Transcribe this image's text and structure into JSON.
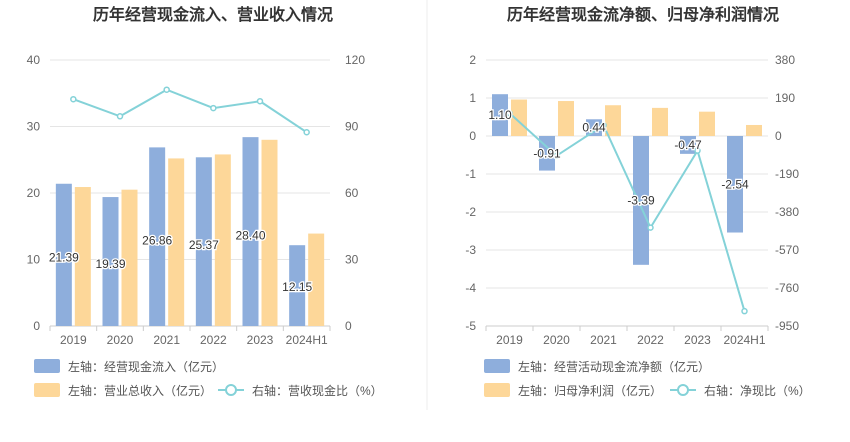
{
  "colors": {
    "bar_primary": "#8eaedc",
    "bar_secondary": "#fdd799",
    "line": "#84d2d8",
    "grid": "#e5e5e5",
    "axis_text": "#666666",
    "title": "#333333",
    "divider": "#eeeeee"
  },
  "chart_data": [
    {
      "type": "bar+line",
      "title": "历年经营现金流入、营业收入情况",
      "categories": [
        "2019",
        "2020",
        "2021",
        "2022",
        "2023",
        "2024H1"
      ],
      "left_axis": {
        "ylim": [
          0,
          40
        ],
        "ticks": [
          "0",
          "10",
          "20",
          "30",
          "40"
        ]
      },
      "right_axis": {
        "ylim": [
          0,
          120
        ],
        "ticks": [
          "0",
          "30",
          "60",
          "90",
          "120"
        ]
      },
      "series": [
        {
          "name": "左轴：经营现金流入（亿元）",
          "type": "bar",
          "axis": "left",
          "color": "#8eaedc",
          "values": [
            21.39,
            19.39,
            26.86,
            25.37,
            28.4,
            12.15
          ],
          "labels": [
            "21.39",
            "19.39",
            "26.86",
            "25.37",
            "28.40",
            "12.15"
          ]
        },
        {
          "name": "左轴：营业总收入（亿元）",
          "type": "bar",
          "axis": "left",
          "color": "#fdd799",
          "values": [
            20.9,
            20.5,
            25.2,
            25.8,
            28.0,
            13.9
          ]
        },
        {
          "name": "右轴：营收现金比（%）",
          "type": "line",
          "axis": "right",
          "color": "#84d2d8",
          "values": [
            102.3,
            94.6,
            106.6,
            98.3,
            101.4,
            87.4
          ]
        }
      ],
      "grid": true,
      "legend_position": "bottom"
    },
    {
      "type": "bar+line",
      "title": "历年经营现金流净额、归母净利润情况",
      "categories": [
        "2019",
        "2020",
        "2021",
        "2022",
        "2023",
        "2024H1"
      ],
      "left_axis": {
        "ylim": [
          -5,
          2
        ],
        "ticks": [
          "-5",
          "-4",
          "-3",
          "-2",
          "-1",
          "0",
          "1",
          "2"
        ]
      },
      "right_axis": {
        "ylim": [
          -950,
          380
        ],
        "ticks": [
          "-950",
          "-760",
          "-570",
          "-380",
          "-190",
          "0",
          "190",
          "380"
        ]
      },
      "series": [
        {
          "name": "左轴：经营活动现金流净额（亿元）",
          "type": "bar",
          "axis": "left",
          "color": "#8eaedc",
          "values": [
            1.1,
            -0.91,
            0.44,
            -3.39,
            -0.47,
            -2.54
          ],
          "labels": [
            "1.10",
            "-0.91",
            "0.44",
            "-3.39",
            "-0.47",
            "-2.54"
          ]
        },
        {
          "name": "左轴：归母净利润（亿元）",
          "type": "bar",
          "axis": "left",
          "color": "#fdd799",
          "values": [
            0.96,
            0.92,
            0.81,
            0.74,
            0.64,
            0.29
          ]
        },
        {
          "name": "右轴：净现比（%）",
          "type": "line",
          "axis": "right",
          "color": "#84d2d8",
          "values": [
            114.6,
            -98.9,
            54.3,
            -458.1,
            -73.4,
            -875.9
          ]
        }
      ],
      "grid": true,
      "legend_position": "bottom"
    }
  ]
}
